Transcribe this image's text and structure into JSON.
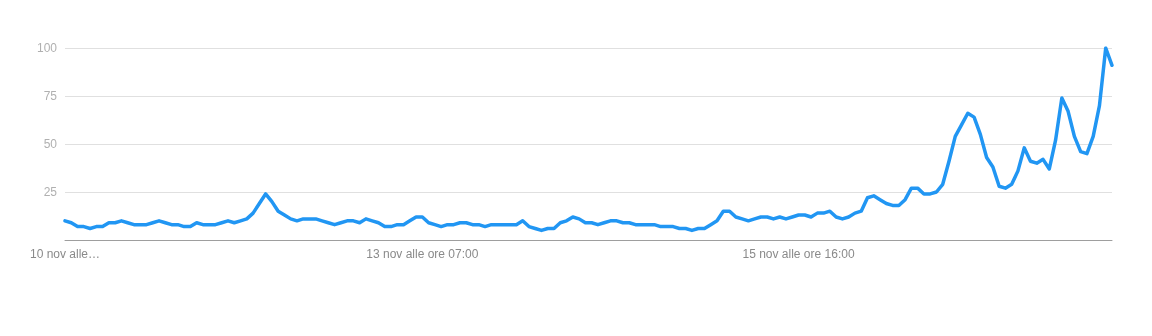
{
  "chart_data": {
    "type": "line",
    "categories": [
      "10 nov alle…",
      null,
      null,
      null,
      null,
      null,
      null,
      null,
      null,
      null,
      null,
      null,
      null,
      null,
      null,
      null,
      null,
      null,
      null,
      null,
      null,
      null,
      null,
      null,
      null,
      null,
      null,
      null,
      null,
      null,
      null,
      null,
      null,
      null,
      null,
      null,
      null,
      null,
      null,
      null,
      null,
      null,
      null,
      null,
      null,
      null,
      null,
      null,
      null,
      null,
      null,
      null,
      null,
      null,
      null,
      null,
      null,
      "13 nov alle ore 07:00",
      null,
      null,
      null,
      null,
      null,
      null,
      null,
      null,
      null,
      null,
      null,
      null,
      null,
      null,
      null,
      null,
      null,
      null,
      null,
      null,
      null,
      null,
      null,
      null,
      null,
      null,
      null,
      null,
      null,
      null,
      null,
      null,
      null,
      null,
      null,
      null,
      null,
      null,
      null,
      null,
      null,
      null,
      null,
      null,
      null,
      null,
      null,
      null,
      null,
      null,
      null,
      null,
      null,
      null,
      null,
      null,
      null,
      null,
      null,
      "15 nov alle ore 16:00",
      null,
      null,
      null,
      null,
      null,
      null,
      null,
      null,
      null,
      null,
      null,
      null,
      null,
      null,
      null,
      null,
      null,
      null,
      null,
      null,
      null,
      null,
      null,
      null,
      null,
      null,
      null,
      null,
      null,
      null,
      null,
      null,
      null,
      null,
      null,
      null,
      null,
      null,
      null,
      null,
      null,
      null,
      null,
      null,
      null,
      null,
      null,
      null,
      null,
      null
    ],
    "series": [
      {
        "color": "#2196f3",
        "values": [
          10,
          9,
          7,
          7,
          6,
          7,
          7,
          9,
          9,
          10,
          9,
          8,
          8,
          8,
          9,
          10,
          9,
          8,
          8,
          7,
          7,
          9,
          8,
          8,
          8,
          9,
          10,
          9,
          10,
          11,
          14,
          19,
          24,
          20,
          15,
          13,
          11,
          10,
          11,
          11,
          11,
          10,
          9,
          8,
          9,
          10,
          10,
          9,
          11,
          10,
          9,
          7,
          7,
          8,
          8,
          10,
          12,
          12,
          9,
          8,
          7,
          8,
          8,
          9,
          9,
          8,
          8,
          7,
          8,
          8,
          8,
          8,
          8,
          10,
          7,
          6,
          5,
          6,
          6,
          9,
          10,
          12,
          11,
          9,
          9,
          8,
          9,
          10,
          10,
          9,
          9,
          8,
          8,
          8,
          8,
          7,
          7,
          7,
          6,
          6,
          5,
          6,
          6,
          8,
          10,
          15,
          15,
          12,
          11,
          10,
          11,
          12,
          12,
          11,
          12,
          11,
          12,
          13,
          13,
          12,
          14,
          14,
          15,
          12,
          11,
          12,
          14,
          15,
          22,
          23,
          21,
          19,
          18,
          18,
          21,
          27,
          27,
          24,
          24,
          25,
          29,
          41,
          54,
          60,
          66,
          64,
          55,
          43,
          38,
          28,
          27,
          29,
          36,
          48,
          41,
          40,
          42,
          37,
          52,
          74,
          67,
          54,
          46,
          45,
          54,
          70,
          100,
          91
        ]
      }
    ],
    "ylim": [
      0,
      100
    ],
    "yticks": [
      25,
      50,
      75,
      100
    ],
    "grid": "y",
    "marker": "none",
    "line_style": "solid"
  }
}
